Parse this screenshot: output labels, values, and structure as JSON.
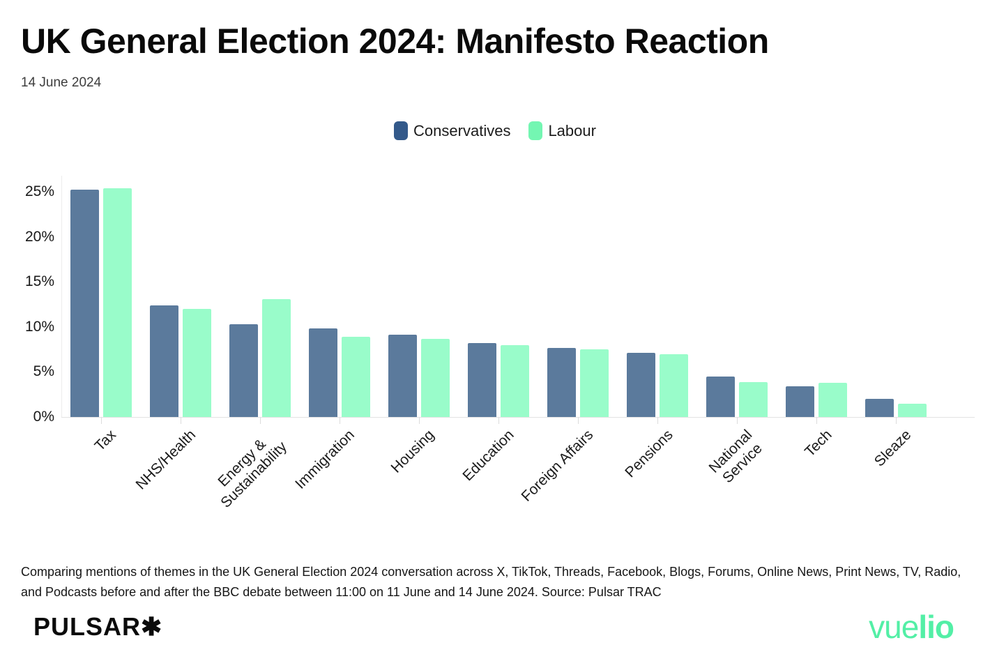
{
  "header": {
    "title": "UK General Election 2024: Manifesto Reaction",
    "date": "14 June 2024"
  },
  "legend": {
    "items": [
      {
        "label": "Conservatives",
        "color": "#33598a"
      },
      {
        "label": "Labour",
        "color": "#74f6b2"
      }
    ]
  },
  "chart_data": {
    "type": "bar",
    "title": "UK General Election 2024: Manifesto Reaction",
    "categories": [
      "Tax",
      "NHS/Health",
      "Energy &\nSustainability",
      "Immigration",
      "Housing",
      "Education",
      "Foreign Affairs",
      "Pensions",
      "National\nService",
      "Tech",
      "Sleaze"
    ],
    "series": [
      {
        "name": "Conservatives",
        "color": "#5b7a9c",
        "values": [
          25.2,
          12.4,
          10.3,
          9.8,
          9.1,
          8.2,
          7.7,
          7.1,
          4.5,
          3.4,
          2.0
        ]
      },
      {
        "name": "Labour",
        "color": "#99fcca",
        "values": [
          25.4,
          12.0,
          13.1,
          8.9,
          8.7,
          8.0,
          7.5,
          7.0,
          3.9,
          3.8,
          1.5
        ]
      }
    ],
    "yticks": [
      0,
      5,
      10,
      15,
      20,
      25
    ],
    "ytick_suffix": "%",
    "ylim": [
      0,
      26
    ],
    "xlabel": "",
    "ylabel": "",
    "grid": false,
    "legend_position": "top-center"
  },
  "footer": {
    "caption": "Comparing mentions of themes in the UK General Election 2024 conversation across X, TikTok, Threads, Facebook, Blogs, Forums, Online News, Print News, TV, Radio, and Podcasts before and after the BBC debate between 11:00 on 11 June and 14 June 2024. Source: Pulsar TRAC",
    "pulsar_logo": "PULSAR✱",
    "vuelio_logo_light": "vue",
    "vuelio_logo_bold": "lio",
    "vuelio_color": "#53efa6"
  }
}
